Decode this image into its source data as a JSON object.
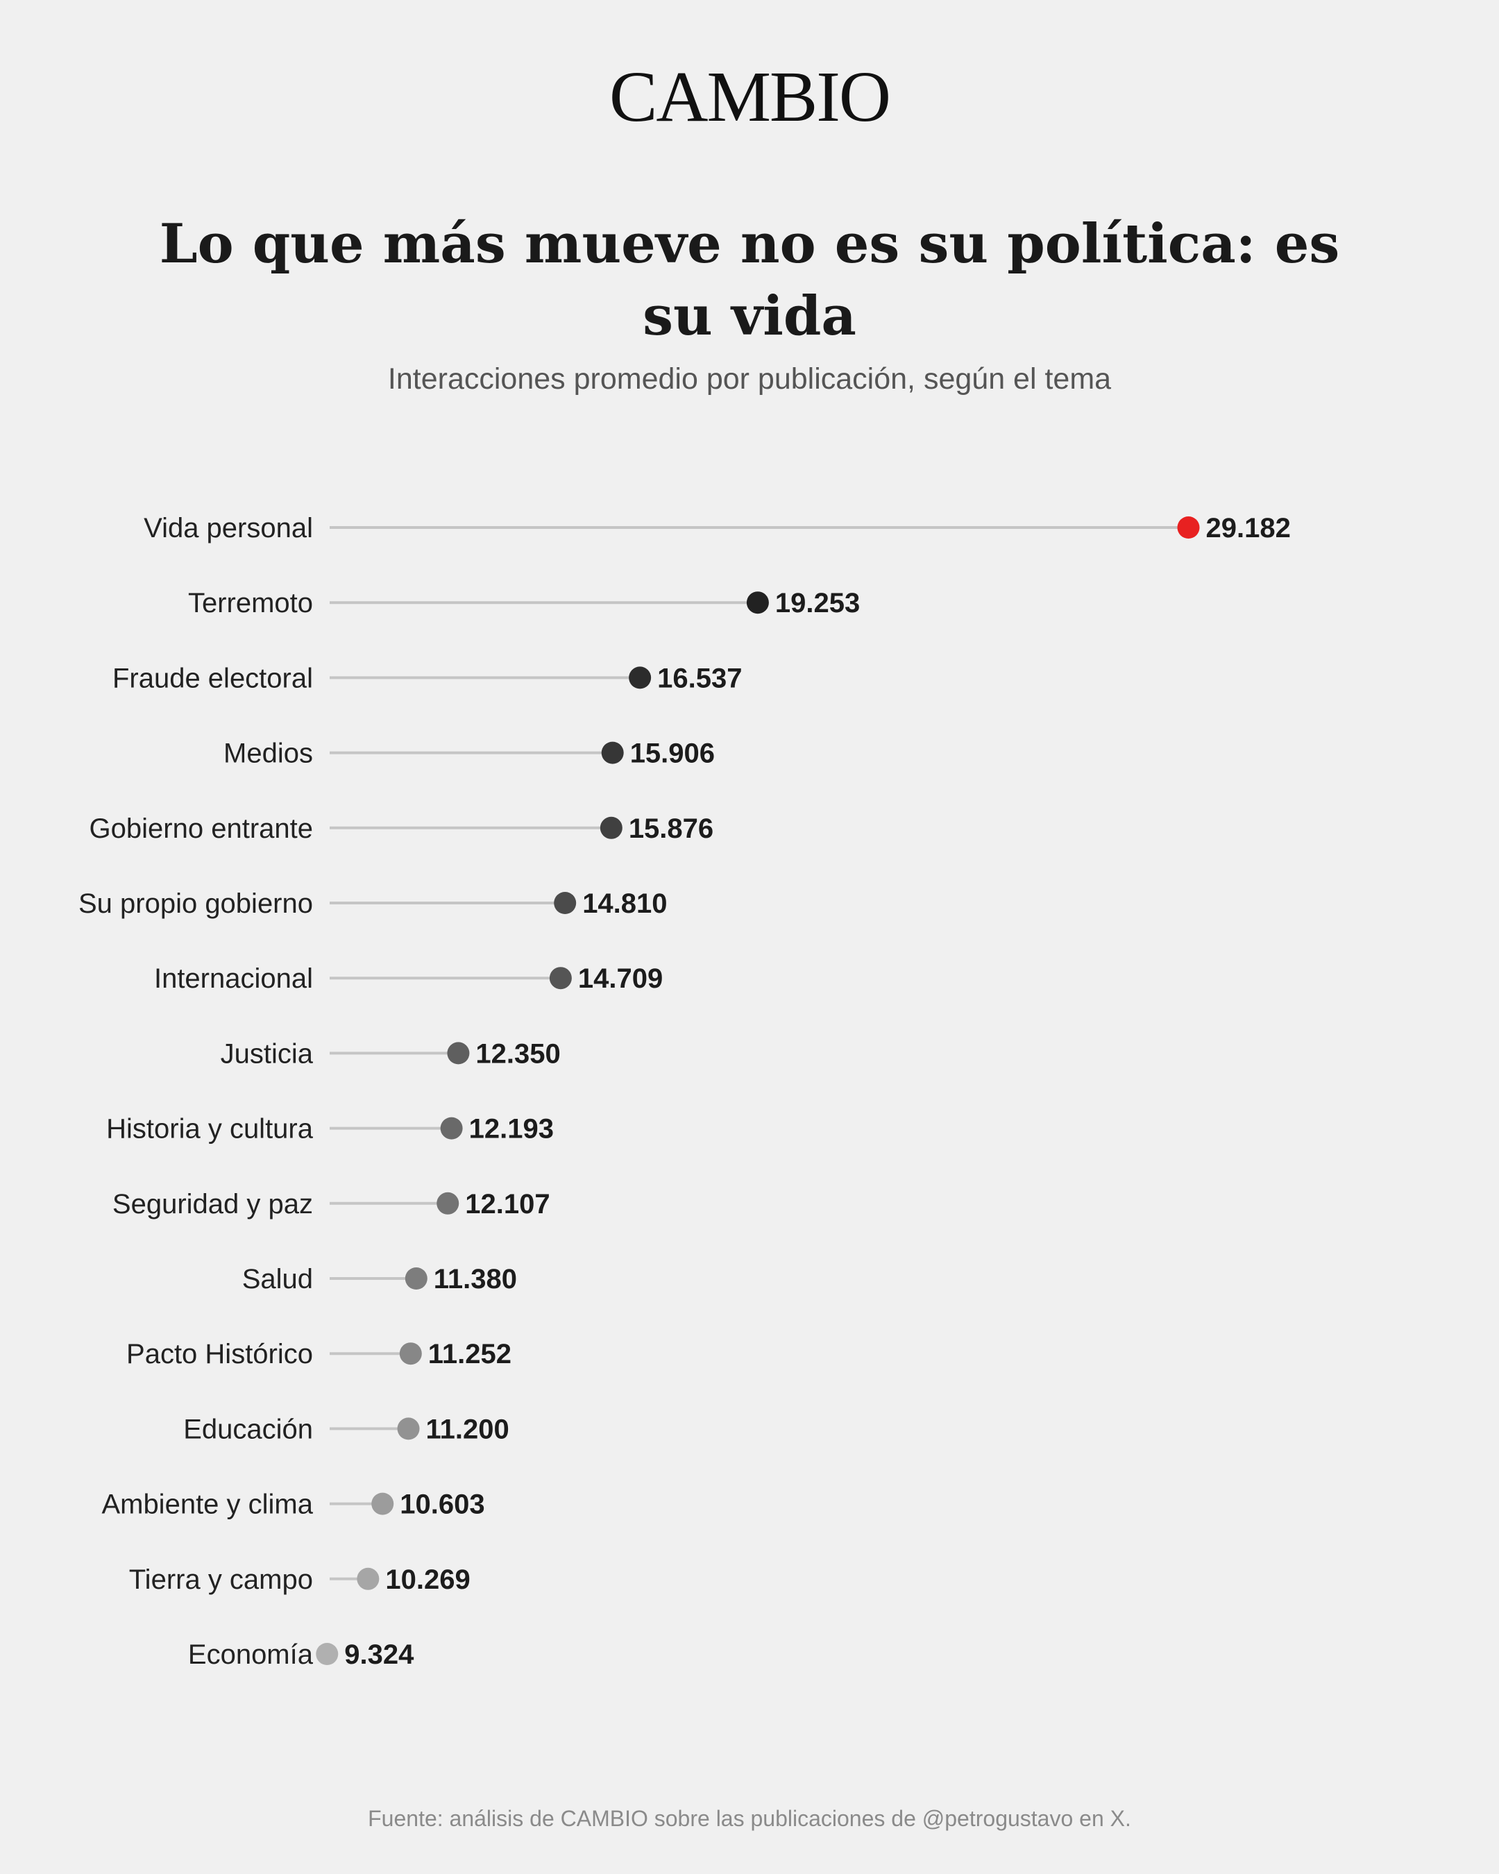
{
  "header": {
    "logo": "CAMBIO",
    "title": "Lo que más mueve no es su política: es su vida",
    "subtitle": "Interacciones promedio por publicación, según el tema"
  },
  "footer": {
    "source": "Fuente: análisis de CAMBIO sobre las publicaciones de @petrogustavo en X."
  },
  "colors": {
    "highlight": "#e82121",
    "line": "#c5c5c5",
    "background": "#f0f0f0"
  },
  "chart_data": {
    "type": "lollipop",
    "title": "Lo que más mueve no es su política: es su vida",
    "subtitle": "Interacciones promedio por publicación, según el tema",
    "orientation": "horizontal",
    "grid": false,
    "legend": "none",
    "highlight_category": "Vida personal",
    "categories": [
      "Vida personal",
      "Terremoto",
      "Fraude electoral",
      "Medios",
      "Gobierno entrante",
      "Su propio gobierno",
      "Internacional",
      "Justicia",
      "Historia y cultura",
      "Seguridad y paz",
      "Salud",
      "Pacto Histórico",
      "Educación",
      "Ambiente y clima",
      "Tierra y campo",
      "Economía"
    ],
    "values": [
      29182,
      19253,
      16537,
      15906,
      15876,
      14810,
      14709,
      12350,
      12193,
      12107,
      11380,
      11252,
      11200,
      10603,
      10269,
      9324
    ],
    "value_labels": [
      "29.182",
      "19.253",
      "16.537",
      "15.906",
      "15.876",
      "14.810",
      "14.709",
      "12.350",
      "12.193",
      "12.107",
      "11.380",
      "11.252",
      "11.200",
      "10.603",
      "10.269",
      "9.324"
    ],
    "xlim": [
      0,
      29182
    ]
  }
}
